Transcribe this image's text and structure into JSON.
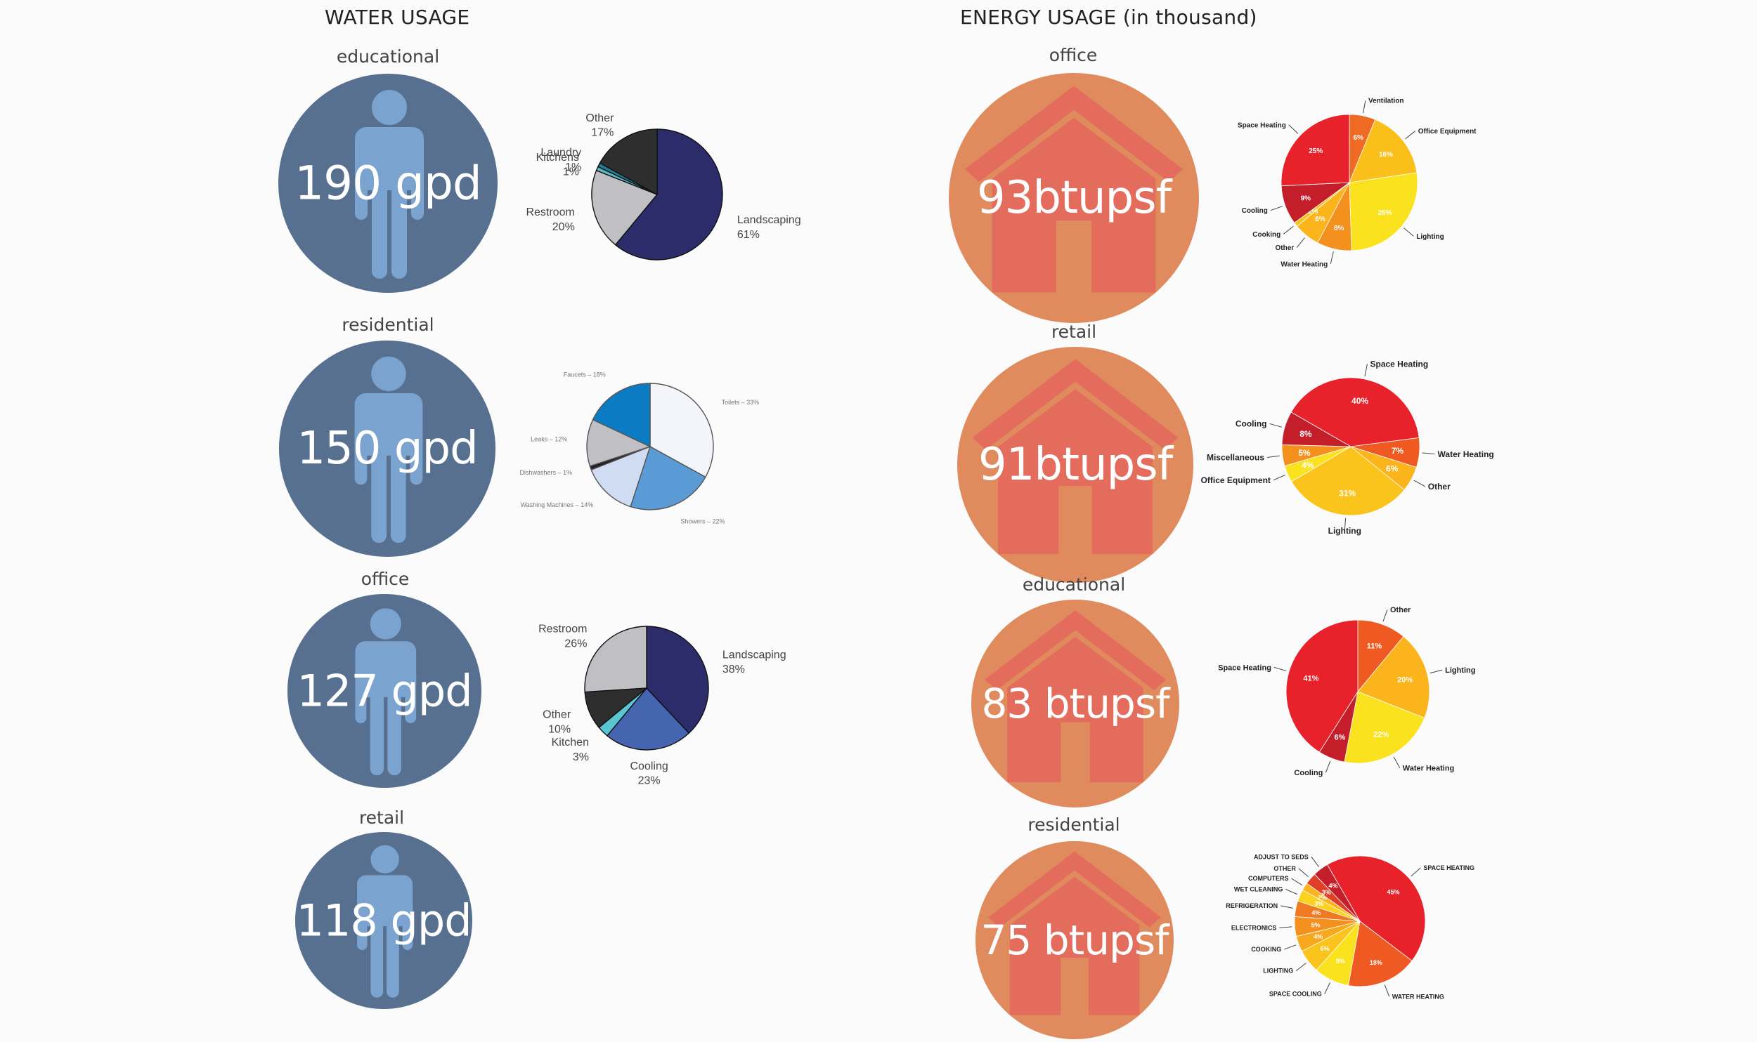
{
  "water": {
    "title": "WATER USAGE",
    "items": [
      {
        "label": "educational",
        "value": "190 gpd"
      },
      {
        "label": "residential",
        "value": "150 gpd"
      },
      {
        "label": "office",
        "value": "127 gpd"
      },
      {
        "label": "retail",
        "value": "118 gpd"
      }
    ]
  },
  "energy": {
    "title": "ENERGY USAGE (in thousand)",
    "items": [
      {
        "label": "office",
        "value": "93btupsf"
      },
      {
        "label": "retail",
        "value": "91btupsf"
      },
      {
        "label": "educational",
        "value": "83 btupsf"
      },
      {
        "label": "residential",
        "value": "75 btupsf"
      }
    ]
  },
  "chart_data": [
    {
      "type": "pie",
      "group": "water-educational",
      "labels": [
        "Landscaping",
        "Restroom",
        "Kitchens",
        "Laundry",
        "Other"
      ],
      "values": [
        61,
        20,
        1,
        1,
        17
      ],
      "value_labels": [
        "61%",
        "20%",
        "1%",
        "1%",
        "17%"
      ],
      "colors": [
        "#2c2c6b",
        "#c0c0c4",
        "#5ab6c6",
        "#1f7f93",
        "#2e2e2e"
      ]
    },
    {
      "type": "pie",
      "group": "water-residential",
      "labels": [
        "Toilets",
        "Showers",
        "Washing Machines",
        "Dishwashers",
        "Leaks",
        "Faucets"
      ],
      "values": [
        33,
        22,
        14,
        1,
        12,
        18
      ],
      "value_labels": [
        "Toilets – 33%",
        "Showers – 22%",
        "Washing Machines – 14%",
        "Dishwashers – 1%",
        "Leaks – 12%",
        "Faucets – 18%"
      ],
      "colors": [
        "#f4f5fa",
        "#5b9bd5",
        "#cfdcf1",
        "#222222",
        "#bfbfc4",
        "#0b7bc4"
      ]
    },
    {
      "type": "pie",
      "group": "water-office",
      "labels": [
        "Landscaping",
        "Cooling",
        "Kitchen",
        "Other",
        "Restroom"
      ],
      "values": [
        38,
        23,
        3,
        10,
        26
      ],
      "value_labels": [
        "38%",
        "23%",
        "3%",
        "10%",
        "26%"
      ],
      "colors": [
        "#2c2c6b",
        "#4565b0",
        "#5ac6d0",
        "#2e2e2e",
        "#c0c0c4"
      ]
    },
    {
      "type": "pie",
      "group": "energy-office",
      "labels": [
        "Ventilation",
        "Office Equipment",
        "Lighting",
        "Water Heating",
        "Other",
        "Cooking",
        "Cooling",
        "Space Heating"
      ],
      "values": [
        6,
        16,
        26,
        8,
        6,
        1,
        9,
        25
      ],
      "value_labels": [
        "6%",
        "16%",
        "26%",
        "8%",
        "6%",
        "1%",
        "9%",
        "25%"
      ],
      "colors": [
        "#ef6a22",
        "#fbbf1c",
        "#fbe21e",
        "#f4901e",
        "#fbb41c",
        "#f7c31d",
        "#c41e2a",
        "#e8222a"
      ]
    },
    {
      "type": "pie",
      "group": "energy-retail",
      "labels": [
        "Space Heating",
        "Water Heating",
        "Other",
        "Lighting",
        "Office Equipment",
        "Miscellaneous",
        "Cooling"
      ],
      "values": [
        40,
        7,
        6,
        31,
        4,
        5,
        8
      ],
      "value_labels": [
        "40%",
        "7%",
        "6%",
        "31%",
        "4%",
        "5%",
        "8%"
      ],
      "colors": [
        "#e8222a",
        "#ef5a22",
        "#fbb41c",
        "#fbc41c",
        "#fbe21e",
        "#f4901e",
        "#c41e2a"
      ]
    },
    {
      "type": "pie",
      "group": "energy-educational",
      "labels": [
        "Other",
        "Lighting",
        "Water Heating",
        "Cooling",
        "Space Heating"
      ],
      "values": [
        11,
        20,
        22,
        6,
        41
      ],
      "value_labels": [
        "11%",
        "20%",
        "22%",
        "6%",
        "41%"
      ],
      "colors": [
        "#ef5a22",
        "#fbb41c",
        "#fbe21e",
        "#c41e2a",
        "#e8222a"
      ]
    },
    {
      "type": "pie",
      "group": "energy-residential",
      "labels": [
        "SPACE HEATING",
        "WATER HEATING",
        "SPACE COOLING",
        "LIGHTING",
        "COOKING",
        "ELECTRONICS",
        "REFRIGERATION",
        "WET CLEANING",
        "COMPUTERS",
        "OTHER",
        "ADJUST TO SEDS"
      ],
      "values": [
        45,
        18,
        9,
        6,
        4,
        5,
        4,
        3,
        2,
        3,
        4
      ],
      "value_labels": [
        "45%",
        "18%",
        "9%",
        "6%",
        "4%",
        "5%",
        "4%",
        "3%",
        "2%",
        "3%",
        "4%"
      ],
      "colors": [
        "#e8222a",
        "#ef5a22",
        "#fbe21e",
        "#fbc41c",
        "#f7a81c",
        "#f4901e",
        "#ef7a22",
        "#fbd21e",
        "#fbb41c",
        "#e0402a",
        "#c41e2a"
      ]
    }
  ]
}
